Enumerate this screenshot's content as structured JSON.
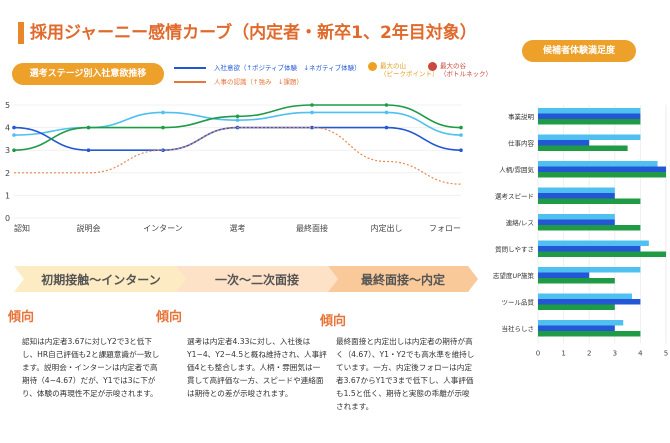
{
  "title": "採用ジャーニー感情カーブ（内定者・新卒1、2年目対象）",
  "left_pill": "選考ステージ別入社意欲推移",
  "right_pill": "候補者体験満足度",
  "legend": {
    "motivation": "入社意欲（↑ポジティブ体験　↓ネガティブ体験）",
    "hr": "人事の認識（↑強み　↓課題）",
    "peak": "最大の山",
    "peak_sub": "（ピークポイント）",
    "valley": "最大の谷",
    "valley_sub": "（ボトルネック）"
  },
  "colors": {
    "accent": "#eda02a",
    "title": "#e06a2c",
    "light_blue": "#4fc0ef",
    "blue": "#2457d6",
    "green": "#1f9a45",
    "orange": "#e8864a",
    "peak": "#f0a020",
    "valley": "#c9483f"
  },
  "stages": [
    "初期接触～インターン",
    "一次～二次面接",
    "最終面接～内定"
  ],
  "trends": [
    {
      "heading": "傾向",
      "text": "認知は内定者3.67に対しY2で3と低下し、HR自己評価も2と課題意識が一致します。説明会・インターンは内定者で高期待（4~4.67）だが、Y1では3に下がり、体験の再現性不足が示唆されます。"
    },
    {
      "heading": "傾向",
      "text": "選考は内定者4.33に対し、入社後はY1−4、Y2−4.5と概ね維持され、人事評価4とも整合します。人柄・雰囲気は一貫して高評価な一方、スピードや連絡面は期待との差が示唆されます。"
    },
    {
      "heading": "傾向",
      "text": "最終面接と内定出しは内定者の期待が高く（4.67）、Y1・Y2でも高水準を維持しています。一方、内定後フォローは内定者3.67からY1で3まで低下し、人事評価も1.5と低く、期待と実態の乖離が示唆されます。"
    }
  ],
  "chart_data": [
    {
      "type": "line",
      "categories": [
        "認知",
        "説明会",
        "インターン",
        "選考",
        "最終面接",
        "内定出し",
        "フォロー"
      ],
      "ylim": [
        0,
        5
      ],
      "yticks": [
        0,
        1,
        2,
        3,
        4,
        5
      ],
      "grid": true,
      "series": [
        {
          "color": "#4fc0ef",
          "values": [
            3.67,
            4,
            4.67,
            4.33,
            4.67,
            4.67,
            3.67
          ]
        },
        {
          "color": "#2457d6",
          "values": [
            4,
            3,
            3,
            4,
            4,
            4,
            3
          ]
        },
        {
          "color": "#1f9a45",
          "values": [
            3,
            4,
            4,
            4.5,
            5,
            5,
            4
          ]
        },
        {
          "color": "#e8864a",
          "dashed": true,
          "values": [
            2,
            2,
            3,
            4,
            4,
            2.5,
            1.5
          ]
        }
      ]
    },
    {
      "type": "bar",
      "orientation": "horizontal",
      "categories": [
        "事業説明",
        "仕事内容",
        "人柄/雰囲気",
        "選考スピード",
        "連絡/レス",
        "質問しやすさ",
        "志望度UP施策",
        "ツール品質",
        "当社らしさ"
      ],
      "xlim": [
        0,
        5
      ],
      "xticks": [
        0,
        1,
        2,
        3,
        4,
        5
      ],
      "series": [
        {
          "color": "#4fc0ef",
          "values": [
            4,
            4,
            4.67,
            3,
            3,
            4.33,
            4,
            3.67,
            3.33
          ]
        },
        {
          "color": "#2457d6",
          "values": [
            4,
            2,
            5,
            3,
            3,
            4,
            2,
            4,
            3
          ]
        },
        {
          "color": "#1f9a45",
          "values": [
            4,
            3.5,
            5,
            4,
            4,
            5,
            3,
            3,
            4
          ]
        }
      ]
    }
  ]
}
